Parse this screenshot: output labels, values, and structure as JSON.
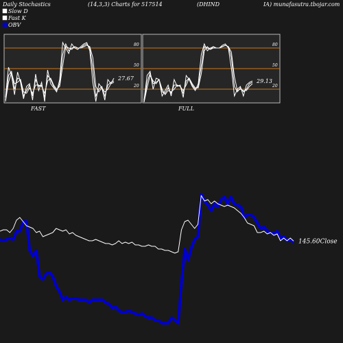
{
  "header": {
    "title": "Daily Stochastics",
    "params": "(14,3,3) Charts for 517514",
    "symbol_part1": "(DHIND",
    "symbol_part2": "IA) munafasutra.tbojar.com"
  },
  "legend": {
    "items": [
      {
        "label": "Slow  D",
        "color": "#ffffff"
      },
      {
        "label": "Fast K",
        "color": "#ffffff"
      },
      {
        "label": "OBV",
        "color": "#0000cc"
      }
    ]
  },
  "colors": {
    "background": "#1a1a1a",
    "panel": "#262626",
    "level_line": "#c8781e",
    "stoch_line": "#ffffff",
    "obv_line": "#0000cc",
    "price_line": "#ffffff"
  },
  "chart_data": [
    {
      "type": "line",
      "title": "FAST",
      "ylim": [
        0,
        100
      ],
      "yticks": [
        20,
        50,
        80
      ],
      "levels": [
        20,
        50,
        80
      ],
      "last_value_label": "27.67",
      "series": [
        {
          "values": [
            8,
            52,
            40,
            12,
            45,
            30,
            6,
            24,
            28,
            4,
            42,
            18,
            30,
            2,
            48,
            28,
            22,
            16,
            34,
            88,
            80,
            72,
            86,
            80,
            78,
            82,
            86,
            88,
            76,
            30,
            2,
            28,
            22,
            4,
            34,
            28,
            36
          ]
        },
        {
          "values": [
            4,
            40,
            46,
            20,
            36,
            34,
            10,
            18,
            26,
            10,
            34,
            24,
            26,
            8,
            40,
            34,
            24,
            18,
            28,
            70,
            86,
            76,
            80,
            82,
            80,
            80,
            84,
            86,
            80,
            50,
            10,
            20,
            24,
            10,
            26,
            30,
            32
          ]
        },
        {
          "values": [
            2,
            30,
            44,
            28,
            30,
            34,
            16,
            14,
            22,
            14,
            26,
            26,
            24,
            14,
            32,
            36,
            26,
            20,
            24,
            54,
            82,
            80,
            78,
            82,
            80,
            80,
            82,
            84,
            82,
            66,
            24,
            16,
            22,
            16,
            20,
            28,
            30
          ]
        }
      ]
    },
    {
      "type": "line",
      "title": "FULL",
      "ylim": [
        0,
        100
      ],
      "yticks": [
        20,
        50,
        80
      ],
      "levels": [
        20,
        50,
        80
      ],
      "last_value_label": "29.13",
      "series": [
        {
          "values": [
            4,
            40,
            46,
            20,
            36,
            34,
            10,
            18,
            26,
            10,
            34,
            24,
            26,
            8,
            40,
            34,
            24,
            18,
            28,
            70,
            86,
            76,
            80,
            82,
            80,
            80,
            84,
            86,
            80,
            50,
            10,
            20,
            24,
            10,
            26,
            30,
            32
          ]
        },
        {
          "values": [
            2,
            30,
            44,
            28,
            30,
            34,
            16,
            14,
            22,
            14,
            26,
            26,
            24,
            14,
            32,
            36,
            26,
            20,
            24,
            54,
            82,
            80,
            78,
            82,
            80,
            80,
            82,
            84,
            82,
            66,
            24,
            16,
            22,
            16,
            20,
            28,
            30
          ]
        },
        {
          "values": [
            1,
            22,
            40,
            32,
            28,
            34,
            20,
            12,
            18,
            16,
            20,
            26,
            24,
            18,
            26,
            36,
            28,
            22,
            22,
            42,
            76,
            82,
            78,
            80,
            80,
            80,
            82,
            84,
            82,
            74,
            38,
            18,
            20,
            18,
            18,
            24,
            28
          ]
        }
      ]
    },
    {
      "type": "line",
      "title": "",
      "price_label": "145.60",
      "price_label_suffix": "Close",
      "series": [
        {
          "values": [
            148,
            146,
            148,
            150,
            148,
            160,
            160,
            174,
            174,
            132,
            124,
            132,
            94,
            90,
            98,
            100,
            94,
            80,
            72,
            60,
            64,
            60,
            62,
            62,
            60,
            60,
            60,
            56,
            60,
            60,
            60,
            60,
            56,
            54,
            48,
            50,
            44,
            42,
            42,
            44,
            42,
            40,
            38,
            40,
            36,
            34,
            34,
            30,
            30,
            26,
            26,
            26,
            34,
            30,
            26,
            86,
            134,
            118,
            136,
            148,
            152,
            214,
            204,
            198,
            190,
            200,
            196,
            206,
            210,
            200,
            210,
            200,
            198,
            196,
            180,
            184,
            184,
            180,
            172,
            164,
            166,
            160,
            158,
            156,
            160,
            150,
            152,
            146,
            148,
            144
          ]
        },
        {
          "values": [
            160,
            162,
            162,
            158,
            164,
            176,
            180,
            174,
            168,
            166,
            164,
            158,
            160,
            152,
            154,
            156,
            158,
            164,
            162,
            160,
            162,
            156,
            158,
            154,
            152,
            150,
            148,
            146,
            146,
            148,
            146,
            144,
            142,
            142,
            140,
            142,
            146,
            142,
            144,
            142,
            144,
            140,
            140,
            138,
            138,
            140,
            138,
            138,
            134,
            134,
            132,
            132,
            130,
            128,
            130,
            162,
            174,
            176,
            170,
            164,
            170,
            212,
            204,
            206,
            200,
            204,
            200,
            198,
            196,
            198,
            196,
            194,
            190,
            186,
            180,
            172,
            170,
            168,
            158,
            158,
            160,
            156,
            158,
            154,
            156,
            146,
            150,
            146,
            150,
            145.6
          ]
        }
      ]
    }
  ]
}
